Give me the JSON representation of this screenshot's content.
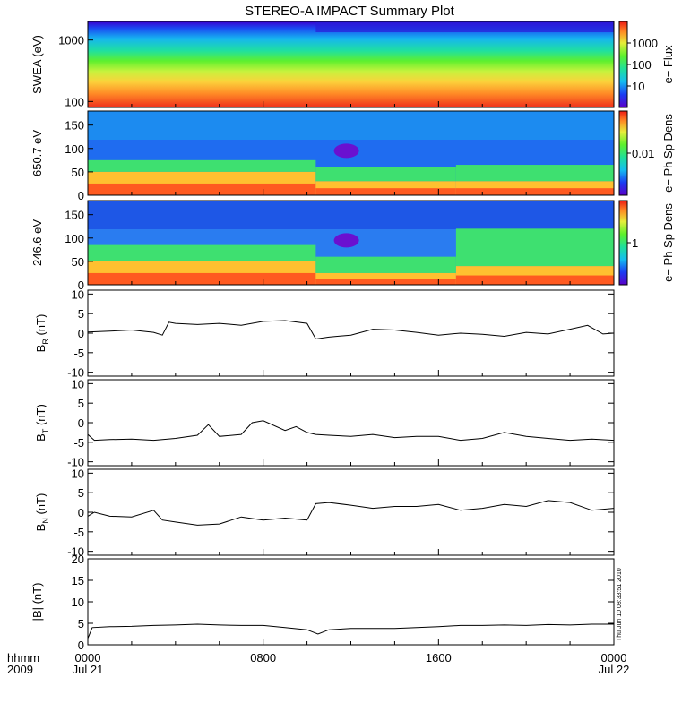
{
  "title": "STEREO-A IMPACT Summary Plot",
  "timestamp_label": "Thu Jun 10 08:33:51 2010",
  "footer": {
    "time_label": "hhmm",
    "year_label": "2009",
    "x_ticks": [
      "0000",
      "0800",
      "1600",
      "0000"
    ],
    "x_date_labels": [
      "Jul 21",
      "",
      "",
      "Jul 22"
    ]
  },
  "panels": [
    {
      "id": "swea",
      "ylabel": "SWEA (eV)",
      "yticks": [
        "1000",
        "100"
      ],
      "colorbar_label": "e− Flux",
      "colorbar_ticks": [
        "1000",
        "100",
        "10"
      ]
    },
    {
      "id": "pad650",
      "ylabel": "650.7 eV",
      "yticks": [
        "150",
        "100",
        "50",
        "0"
      ],
      "colorbar_label": "e− Ph Sp Dens",
      "colorbar_ticks": [
        "0.01"
      ]
    },
    {
      "id": "pad246",
      "ylabel": "246.6 eV",
      "yticks": [
        "150",
        "100",
        "50",
        "0"
      ],
      "colorbar_label": "e− Ph Sp Dens",
      "colorbar_ticks": [
        "1"
      ]
    },
    {
      "id": "br",
      "ylabel_main": "B",
      "ylabel_sub": "R",
      "ylabel_unit": " (nT)",
      "yticks": [
        "10",
        "5",
        "0",
        "-5",
        "-10"
      ]
    },
    {
      "id": "bt",
      "ylabel_main": "B",
      "ylabel_sub": "T",
      "ylabel_unit": " (nT)",
      "yticks": [
        "10",
        "5",
        "0",
        "-5",
        "-10"
      ]
    },
    {
      "id": "bn",
      "ylabel_main": "B",
      "ylabel_sub": "N",
      "ylabel_unit": " (nT)",
      "yticks": [
        "10",
        "5",
        "0",
        "-5",
        "-10"
      ]
    },
    {
      "id": "bmag",
      "ylabel": "|B| (nT)",
      "yticks": [
        "20",
        "15",
        "10",
        "5",
        "0"
      ]
    }
  ],
  "chart_data": [
    {
      "type": "heatmap",
      "title": "",
      "ylabel": "SWEA (eV)",
      "ylim_log": [
        80,
        2000
      ],
      "x_hours": [
        0,
        24
      ],
      "colorbar": "e− Flux",
      "colorbar_range_log": [
        3,
        8000
      ],
      "note_values": "energy spectrogram, flux increasing toward low energy"
    },
    {
      "type": "heatmap",
      "ylabel": "650.7 eV",
      "ylim": [
        0,
        180
      ],
      "x_hours": [
        0,
        24
      ],
      "colorbar": "e− Ph Sp Dens",
      "bands_deg": [
        {
          "x": [
            0,
            10.4
          ],
          "core": [
            0,
            50
          ],
          "halo": [
            50,
            75
          ]
        },
        {
          "x": [
            10.4,
            16.8
          ],
          "core": [
            0,
            30
          ],
          "halo": [
            30,
            60
          ]
        },
        {
          "x": [
            16.8,
            24
          ],
          "core": [
            0,
            30
          ],
          "halo": [
            30,
            65
          ]
        }
      ]
    },
    {
      "type": "heatmap",
      "ylabel": "246.6 eV",
      "ylim": [
        0,
        180
      ],
      "x_hours": [
        0,
        24
      ],
      "colorbar": "e− Ph Sp Dens",
      "bands_deg": [
        {
          "x": [
            0,
            10.4
          ],
          "core": [
            0,
            50
          ],
          "halo": [
            50,
            85
          ]
        },
        {
          "x": [
            10.4,
            16.8
          ],
          "core": [
            0,
            25
          ],
          "halo": [
            25,
            60
          ]
        },
        {
          "x": [
            16.8,
            24
          ],
          "core": [
            0,
            40
          ],
          "halo": [
            40,
            120
          ]
        }
      ]
    },
    {
      "type": "line",
      "ylabel": "BR (nT)",
      "ylim": [
        -11,
        11
      ],
      "x": [
        0,
        1,
        2,
        3,
        3.4,
        3.7,
        4,
        5,
        6,
        7,
        8,
        9,
        10,
        10.4,
        11,
        12,
        13,
        14,
        15,
        16,
        17,
        18,
        19,
        20,
        21,
        22,
        22.8,
        23.5,
        24
      ],
      "y": [
        0.3,
        0.5,
        0.8,
        0.2,
        -0.5,
        2.8,
        2.5,
        2.2,
        2.5,
        2.0,
        3.0,
        3.2,
        2.5,
        -1.5,
        -1.0,
        -0.5,
        1.0,
        0.8,
        0.2,
        -0.5,
        0.0,
        -0.3,
        -0.8,
        0.2,
        -0.2,
        1.0,
        2.0,
        -0.2,
        0.0
      ]
    },
    {
      "type": "line",
      "ylabel": "BT (nT)",
      "ylim": [
        -11,
        11
      ],
      "x": [
        0,
        0.3,
        1,
        2,
        3,
        4,
        5,
        5.5,
        6,
        7,
        7.5,
        8,
        9,
        9.5,
        10,
        10.4,
        11,
        12,
        13,
        14,
        15,
        16,
        17,
        18,
        19,
        20,
        21,
        22,
        23,
        24
      ],
      "y": [
        -3,
        -4.5,
        -4.3,
        -4.2,
        -4.5,
        -4.0,
        -3.2,
        -0.5,
        -3.5,
        -3.0,
        0,
        0.5,
        -2.0,
        -1.0,
        -2.5,
        -3.0,
        -3.2,
        -3.5,
        -3.0,
        -3.8,
        -3.5,
        -3.5,
        -4.5,
        -4.0,
        -2.5,
        -3.5,
        -4.0,
        -4.5,
        -4.2,
        -4.5
      ]
    },
    {
      "type": "line",
      "ylabel": "BN (nT)",
      "ylim": [
        -11,
        11
      ],
      "x": [
        0,
        0.3,
        1,
        2,
        3,
        3.4,
        4,
        5,
        6,
        7,
        8,
        9,
        10,
        10.4,
        11,
        12,
        13,
        14,
        15,
        16,
        17,
        18,
        19,
        20,
        21,
        22,
        23,
        24
      ],
      "y": [
        -1,
        0,
        -1,
        -1.2,
        0.5,
        -2,
        -2.5,
        -3.3,
        -3.0,
        -1.2,
        -2.0,
        -1.5,
        -2.0,
        2.2,
        2.5,
        1.8,
        1.0,
        1.5,
        1.5,
        2.0,
        0.5,
        1.0,
        2.0,
        1.5,
        3.0,
        2.5,
        0.5,
        1.0
      ]
    },
    {
      "type": "line",
      "ylabel": "|B| (nT)",
      "ylim": [
        0,
        20
      ],
      "x": [
        0,
        0.2,
        1,
        2,
        3,
        4,
        5,
        6,
        7,
        8,
        9,
        10,
        10.5,
        11,
        12,
        13,
        14,
        15,
        16,
        17,
        18,
        19,
        20,
        21,
        22,
        23,
        24
      ],
      "y": [
        1.5,
        4.0,
        4.2,
        4.3,
        4.5,
        4.6,
        4.8,
        4.6,
        4.5,
        4.5,
        4.0,
        3.5,
        2.5,
        3.5,
        3.8,
        3.8,
        3.8,
        4.0,
        4.2,
        4.5,
        4.5,
        4.6,
        4.5,
        4.7,
        4.6,
        4.8,
        4.8
      ]
    }
  ]
}
